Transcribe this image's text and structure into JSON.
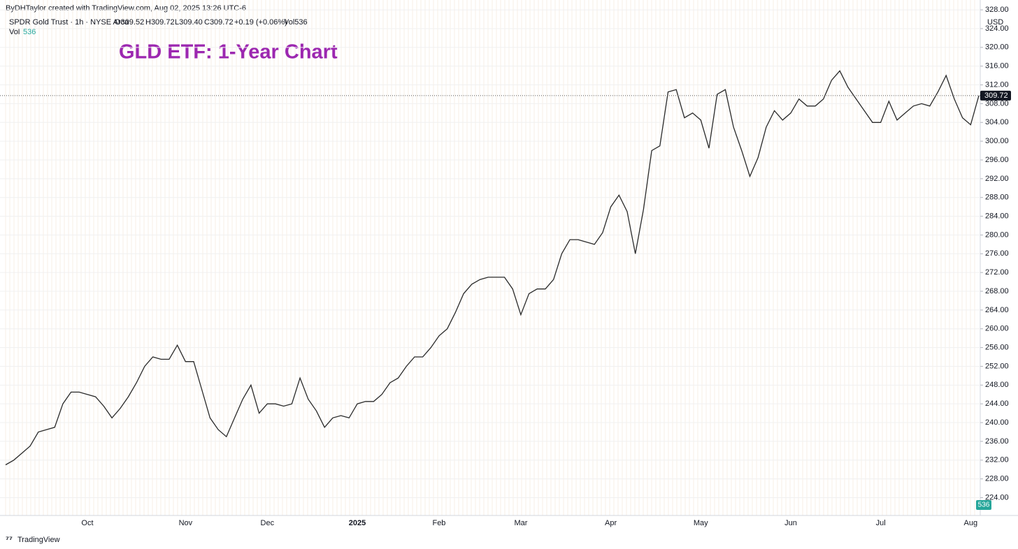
{
  "header": {
    "credit": "ByDHTaylor created with TradingView.com, Aug 02, 2025 13:26 UTC-6",
    "symbol": "SPDR Gold Trust · 1h · NYSE Arca",
    "open": "O309.52",
    "high": "H309.72",
    "low": "L309.40",
    "close": "C309.72",
    "change": "+0.19 (+0.06%)",
    "volume": "Vol536",
    "vol_label": "Vol",
    "vol_value": "536",
    "currency": "USD",
    "brand": "TradingView"
  },
  "chart_data": {
    "type": "line",
    "title": "GLD ETF: 1-Year Chart",
    "color": "#2a2a2a",
    "grid": true,
    "categories": [
      null,
      null,
      null,
      null,
      null,
      null,
      null,
      null,
      null,
      null,
      "Oct",
      null,
      null,
      null,
      null,
      null,
      null,
      null,
      null,
      null,
      null,
      null,
      "Nov",
      null,
      null,
      null,
      null,
      null,
      null,
      null,
      null,
      null,
      "Dec",
      null,
      null,
      null,
      null,
      null,
      null,
      null,
      null,
      null,
      null,
      "2025",
      null,
      null,
      null,
      null,
      null,
      null,
      null,
      null,
      null,
      "Feb",
      null,
      null,
      null,
      null,
      null,
      null,
      null,
      null,
      null,
      "Mar",
      null,
      null,
      null,
      null,
      null,
      null,
      null,
      null,
      null,
      null,
      "Apr",
      null,
      null,
      null,
      null,
      null,
      null,
      null,
      null,
      null,
      null,
      "May",
      null,
      null,
      null,
      null,
      null,
      null,
      null,
      null,
      null,
      null,
      "Jun",
      null,
      null,
      null,
      null,
      null,
      null,
      null,
      null,
      null,
      null,
      "Jul",
      null,
      null,
      null,
      null,
      null,
      null,
      null,
      null,
      null,
      null,
      "Aug",
      null
    ],
    "values": [
      231,
      232,
      233.5,
      235,
      238,
      238.5,
      239,
      244,
      246.5,
      246.5,
      246,
      245.5,
      243.5,
      241,
      243,
      245.5,
      248.5,
      252,
      254,
      253.5,
      253.5,
      256.5,
      253,
      253,
      247,
      241,
      238.5,
      237,
      241,
      245,
      248,
      242,
      244,
      244,
      243.5,
      244,
      249.5,
      245,
      242.5,
      239,
      241,
      241.5,
      241,
      244,
      244.5,
      244.5,
      246,
      248.5,
      249.5,
      252,
      254,
      254,
      256,
      258.5,
      260,
      263.5,
      267.5,
      269.5,
      270.5,
      271,
      271,
      271,
      268.5,
      263,
      267.5,
      268.5,
      268.5,
      270.5,
      276,
      279,
      279,
      278.5,
      278,
      280.5,
      286,
      288.5,
      285,
      276,
      285.5,
      298,
      299,
      310.5,
      311,
      305,
      306,
      304.5,
      298.5,
      310,
      311,
      303,
      298,
      292.5,
      296.5,
      303,
      306.5,
      304.5,
      306,
      309,
      307.5,
      307.5,
      309,
      313,
      315,
      311.5,
      309,
      306.5,
      304,
      304,
      308.5,
      304.5,
      306,
      307.5,
      308,
      307.5,
      310.5,
      314,
      309,
      305,
      303.5,
      309.72
    ],
    "ylim": [
      220.2,
      330.1
    ],
    "yticks": [
      {
        "value": 224,
        "label": "224.00"
      },
      {
        "value": 228,
        "label": "228.00"
      },
      {
        "value": 232,
        "label": "232.00"
      },
      {
        "value": 236,
        "label": "236.00"
      },
      {
        "value": 240,
        "label": "240.00"
      },
      {
        "value": 244,
        "label": "244.00"
      },
      {
        "value": 248,
        "label": "248.00"
      },
      {
        "value": 252,
        "label": "252.00"
      },
      {
        "value": 256,
        "label": "256.00"
      },
      {
        "value": 260,
        "label": "260.00"
      },
      {
        "value": 264,
        "label": "264.00"
      },
      {
        "value": 268,
        "label": "268.00"
      },
      {
        "value": 272,
        "label": "272.00"
      },
      {
        "value": 276,
        "label": "276.00"
      },
      {
        "value": 280,
        "label": "280.00"
      },
      {
        "value": 284,
        "label": "284.00"
      },
      {
        "value": 288,
        "label": "288.00"
      },
      {
        "value": 292,
        "label": "292.00"
      },
      {
        "value": 296,
        "label": "296.00"
      },
      {
        "value": 300,
        "label": "300.00"
      },
      {
        "value": 304,
        "label": "304.00"
      },
      {
        "value": 308,
        "label": "308.00"
      },
      {
        "value": 312,
        "label": "312.00"
      },
      {
        "value": 316,
        "label": "316.00"
      },
      {
        "value": 320,
        "label": "320.00"
      },
      {
        "value": 324,
        "label": "324.00"
      },
      {
        "value": 328,
        "label": "328.00"
      }
    ]
  }
}
